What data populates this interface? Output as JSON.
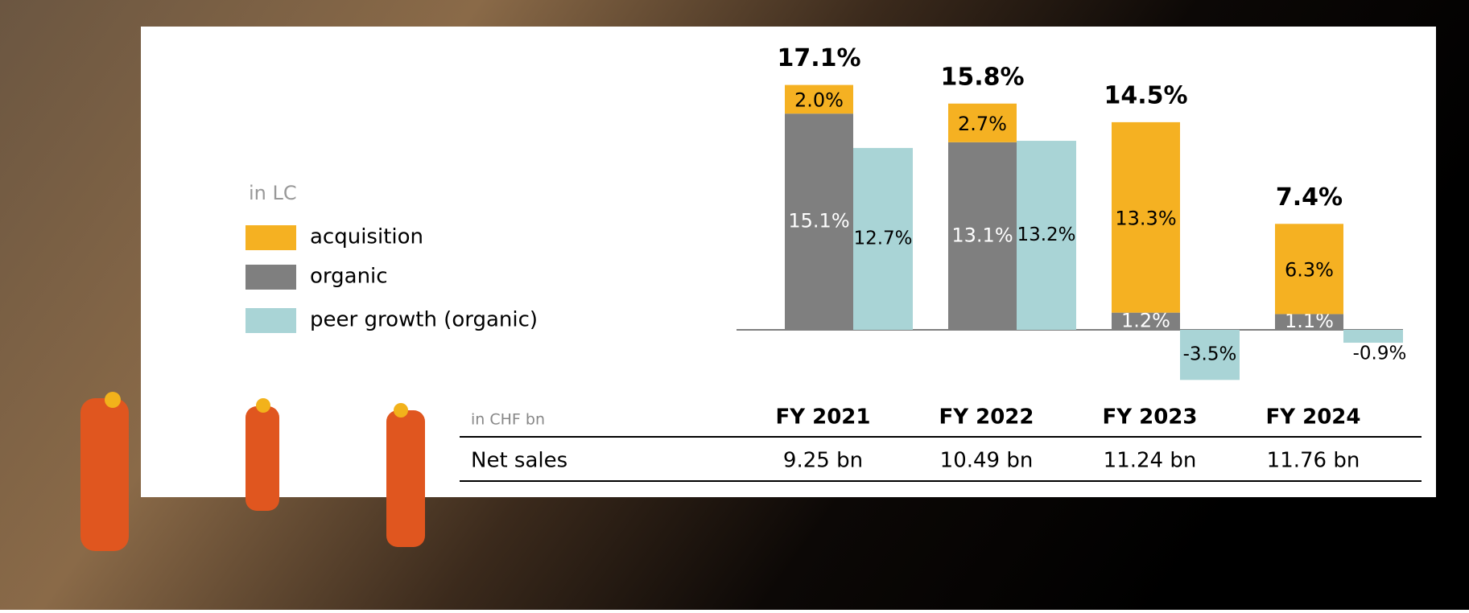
{
  "chart_data": {
    "type": "stacked-bar-with-peer",
    "legend_title": "in LC",
    "categories": [
      "FY 2021",
      "FY 2022",
      "FY 2023",
      "FY 2024"
    ],
    "series": [
      {
        "name": "acquisition",
        "color": "#f5b122",
        "values": [
          2.0,
          2.7,
          13.3,
          6.3
        ],
        "value_labels": [
          "2.0%",
          "2.7%",
          "13.3%",
          "6.3%"
        ]
      },
      {
        "name": "organic",
        "color": "#7f7f7f",
        "values": [
          15.1,
          13.1,
          1.2,
          1.1
        ],
        "value_labels": [
          "15.1%",
          "13.1%",
          "1.2%",
          "1.1%"
        ]
      },
      {
        "name": "peer growth (organic)",
        "color": "#a9d4d6",
        "values": [
          12.7,
          13.2,
          -3.5,
          -0.9
        ],
        "value_labels": [
          "12.7%",
          "13.2%",
          "-3.5%",
          "-0.9%"
        ]
      }
    ],
    "totals": {
      "values": [
        17.1,
        15.8,
        14.5,
        7.4
      ],
      "value_labels": [
        "17.1%",
        "15.8%",
        "14.5%",
        "7.4%"
      ]
    }
  },
  "table": {
    "unit_label": "in CHF bn",
    "row_label": "Net sales",
    "values": [
      "9.25 bn",
      "10.49 bn",
      "11.24 bn",
      "11.76 bn"
    ]
  }
}
